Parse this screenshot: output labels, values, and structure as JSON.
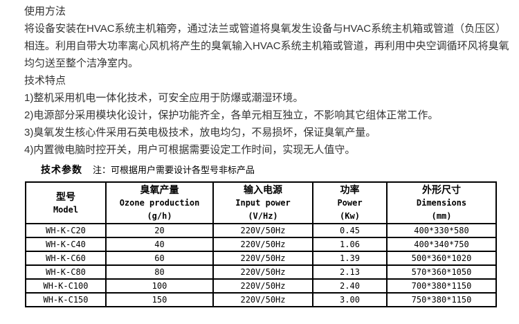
{
  "colors": {
    "background": "#ffffff",
    "body_text": "#333333",
    "table_text": "#000000",
    "table_border": "#000000"
  },
  "usage": {
    "title": "使用方法",
    "body": "将设备安装在HVAC系统主机箱旁，通过法兰或管道将臭氧发生设备与HVAC系统主机箱或管道（负压区）相连。利用自带大功率离心风机将产生的臭氧输入HVAC系统主机箱或管道，再利用中央空调循环风将臭氧均匀送至整个洁净室内。"
  },
  "features": {
    "title": "技术特点",
    "items": [
      "1)整机采用机电一体化技术，可安全应用于防爆或潮湿环境。",
      "2)电源部分采用模块化设计，保护功能齐全，各单元相互独立，不影响其它组体正常工作。",
      "3)臭氧发生核心件采用石英电极技术，放电均匀，不易损坏，保证臭氧产量。",
      "4)内置微电脑时控开关，用户可根据需要设定工作时间，实现无人值守。"
    ]
  },
  "parameters": {
    "title": "技术参数",
    "note": "注：可根据用户需要设计各型号非标产品",
    "table": {
      "headers": [
        {
          "cn": "型号",
          "en": "Model",
          "unit": ""
        },
        {
          "cn": "臭氧产量",
          "en": "Ozone production",
          "unit": "(g/h)"
        },
        {
          "cn": "输入电源",
          "en": "Input power",
          "unit": "(V/Hz)"
        },
        {
          "cn": "功率",
          "en": "Power",
          "unit": "(Kw)"
        },
        {
          "cn": "外形尺寸",
          "en": "Dimensions",
          "unit": "(mm)"
        }
      ],
      "rows": [
        [
          "WH-K-C20",
          "20",
          "220V/50Hz",
          "0.45",
          "400*330*580"
        ],
        [
          "WH-K-C40",
          "40",
          "220V/50Hz",
          "1.06",
          "400*340*750"
        ],
        [
          "WH-K-C60",
          "60",
          "220V/50Hz",
          "1.39",
          "500*360*1020"
        ],
        [
          "WH-K-C80",
          "80",
          "220V/50Hz",
          "2.13",
          "570*360*1050"
        ],
        [
          "WH-K-C100",
          "100",
          "220V/50Hz",
          "2.40",
          "700*380*1150"
        ],
        [
          "WH-K-C150",
          "150",
          "220V/50Hz",
          "3.00",
          "750*380*1150"
        ]
      ]
    }
  }
}
